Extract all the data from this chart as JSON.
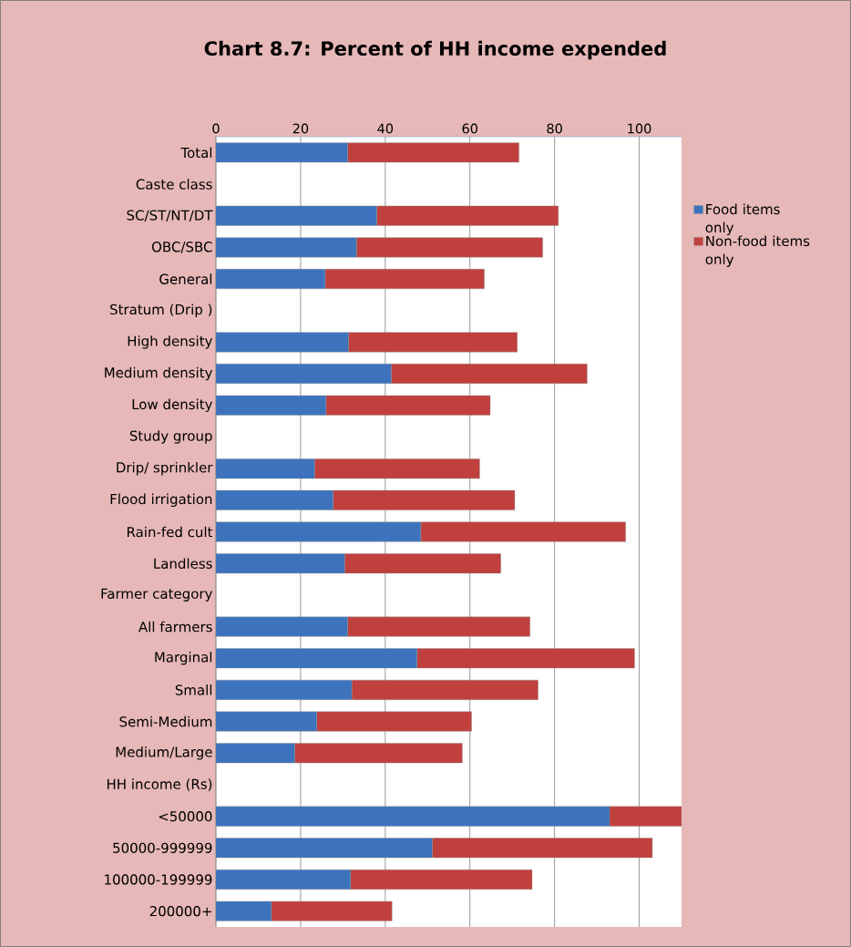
{
  "chart_data": {
    "type": "bar",
    "orientation": "horizontal",
    "stacked": true,
    "title": "Chart 8.7: Percent of HH income expended",
    "categories": [
      "Total",
      "Caste class",
      "SC/ST/NT/DT",
      "OBC/SBC",
      "General",
      "Stratum (Drip )",
      "High density",
      "Medium density",
      "Low density",
      "Study group",
      "Drip/ sprinkler",
      "Flood irrigation",
      "Rain-fed cult",
      "Landless",
      "Farmer category",
      "All farmers",
      "Marginal",
      "Small",
      "Semi-Medium",
      "Medium/Large",
      "HH income (Rs)",
      "<50000",
      "50000-999999",
      "100000-199999",
      "200000+"
    ],
    "series": [
      {
        "name": "Food items only",
        "color": "#3d73bd",
        "values": [
          31.1,
          null,
          38.0,
          33.2,
          25.8,
          null,
          31.3,
          41.4,
          26.0,
          null,
          23.3,
          27.7,
          48.4,
          30.4,
          null,
          31.1,
          47.5,
          32.1,
          23.8,
          18.6,
          null,
          93.0,
          51.1,
          31.8,
          13.1
        ]
      },
      {
        "name": "Non-food items only",
        "color": "#c0403d",
        "values": [
          40.5,
          null,
          42.9,
          44.0,
          37.6,
          null,
          39.9,
          46.3,
          38.8,
          null,
          39.0,
          42.9,
          48.4,
          36.9,
          null,
          43.1,
          51.4,
          44.0,
          36.6,
          39.6,
          null,
          17.0,
          52.0,
          42.9,
          28.5
        ]
      }
    ],
    "xlim": [
      0,
      110
    ],
    "xticks": [
      0,
      20,
      40,
      60,
      80,
      100
    ],
    "grid": "x",
    "legend": "right"
  }
}
